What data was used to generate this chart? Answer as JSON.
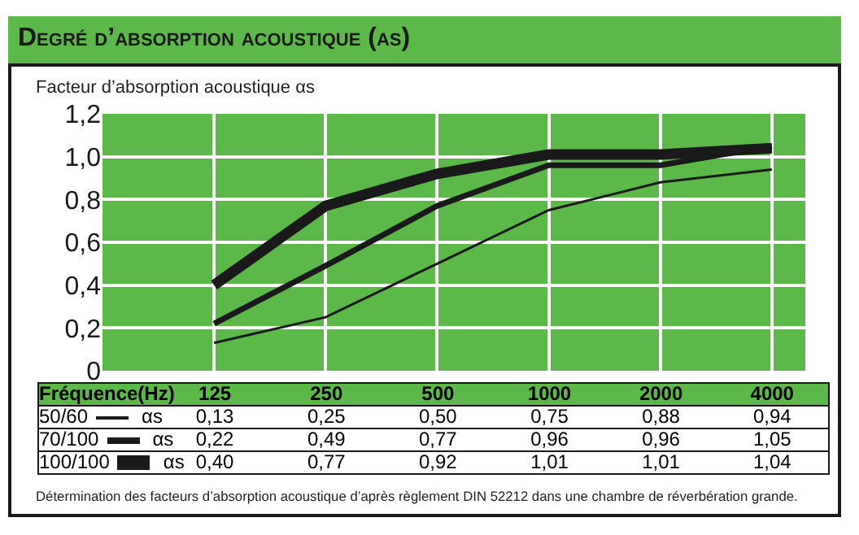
{
  "chart_data": {
    "type": "line",
    "title": "Degré d’absorption acoustique (αs)",
    "ylabel": "Facteur d’absorption acoustique  αs",
    "xlabel": "Fréquence(Hz)",
    "categories": [
      "125",
      "250",
      "500",
      "1000",
      "2000",
      "4000"
    ],
    "series": [
      {
        "name": "50/60",
        "color": "#1a1a1a",
        "values": [
          0.13,
          0.25,
          0.5,
          0.75,
          0.88,
          0.94
        ],
        "value_labels": [
          "0,13",
          "0,25",
          "0,50",
          "0,75",
          "0,88",
          "0,94"
        ]
      },
      {
        "name": "70/100",
        "color": "#1a1a1a",
        "values": [
          0.22,
          0.49,
          0.77,
          0.96,
          0.96,
          1.05
        ],
        "value_labels": [
          "0,22",
          "0,49",
          "0,77",
          "0,96",
          "0,96",
          "1,05"
        ]
      },
      {
        "name": "100/100",
        "color": "#1a1a1a",
        "values": [
          0.4,
          0.77,
          0.92,
          1.01,
          1.01,
          1.04
        ],
        "value_labels": [
          "0,40",
          "0,77",
          "0,92",
          "1,01",
          "1,01",
          "1,04"
        ]
      }
    ],
    "ylim": [
      0,
      1.2
    ],
    "yticks": [
      {
        "value": 0,
        "label": "0"
      },
      {
        "value": 0.2,
        "label": "0,2"
      },
      {
        "value": 0.4,
        "label": "0,4"
      },
      {
        "value": 0.6,
        "label": "0,6"
      },
      {
        "value": 0.8,
        "label": "0,8"
      },
      {
        "value": 1,
        "label": "1,0"
      },
      {
        "value": 1.2,
        "label": "1,2"
      }
    ],
    "grid": true,
    "tick_labels": "y",
    "legend": "bottom",
    "marker": "none",
    "line_style": "solid",
    "annotations": [
      "αs",
      "αs",
      "αs",
      "Détermination des facteurs d’absorption acoustique d’après règlement DIN 52212 dans une chambre de réverbération grande."
    ]
  }
}
